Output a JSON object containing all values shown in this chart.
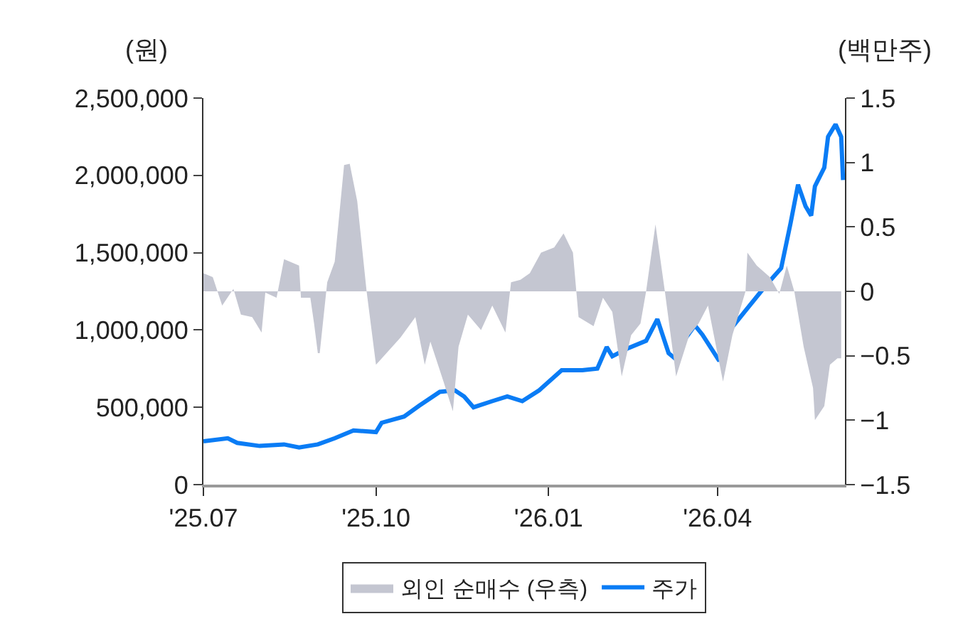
{
  "chart_data": {
    "type": "line",
    "ylabel": "(원)",
    "y2label": "(백만주)",
    "xlim": [
      "2025-07-01",
      "2026-06-08"
    ],
    "xticks": [
      {
        "value": "2025-07-01",
        "label": "'25.07"
      },
      {
        "value": "2025-10-01",
        "label": "'25.10"
      },
      {
        "value": "2026-01-01",
        "label": "'26.01"
      },
      {
        "value": "2026-04-01",
        "label": "'26.04"
      }
    ],
    "ylim": [
      0,
      2500000
    ],
    "yticks": [
      {
        "value": 0,
        "label": "0"
      },
      {
        "value": 500000,
        "label": "500,000"
      },
      {
        "value": 1000000,
        "label": "1,000,000"
      },
      {
        "value": 1500000,
        "label": "1,500,000"
      },
      {
        "value": 2000000,
        "label": "2,000,000"
      },
      {
        "value": 2500000,
        "label": "2,500,000"
      }
    ],
    "y2lim": [
      -1.5,
      1.5
    ],
    "y2ticks": [
      {
        "value": -1.5,
        "label": "−1.5"
      },
      {
        "value": -1,
        "label": "−1"
      },
      {
        "value": -0.5,
        "label": "−0.5"
      },
      0,
      0.5,
      1,
      1.5
    ],
    "grid": false,
    "legend": "bottom",
    "series": [
      {
        "name": "외인 순매수 (우측)",
        "type": "area",
        "axis": "y2",
        "color": "#c4c6d1",
        "x": [
          "2025-07-01",
          "2025-07-06",
          "2025-07-11",
          "2025-07-17",
          "2025-07-21",
          "2025-07-27",
          "2025-08-01",
          "2025-08-03",
          "2025-08-09",
          "2025-08-13",
          "2025-08-21",
          "2025-08-22",
          "2025-08-27",
          "2025-08-29",
          "2025-08-31",
          "2025-09-01",
          "2025-09-05",
          "2025-09-09",
          "2025-09-14",
          "2025-09-17",
          "2025-09-21",
          "2025-09-26",
          "2025-10-01",
          "2025-10-14",
          "2025-10-22",
          "2025-10-27",
          "2025-10-30",
          "2025-11-06",
          "2025-11-11",
          "2025-11-14",
          "2025-11-19",
          "2025-11-26",
          "2025-12-02",
          "2025-12-09",
          "2025-12-12",
          "2025-12-17",
          "2025-12-22",
          "2025-12-28",
          "2026-01-04",
          "2026-01-09",
          "2026-01-14",
          "2026-01-17",
          "2026-01-25",
          "2026-01-30",
          "2026-02-04",
          "2026-02-09",
          "2026-02-14",
          "2026-02-19",
          "2026-02-22",
          "2026-02-27",
          "2026-03-04",
          "2026-03-10",
          "2026-03-17",
          "2026-03-22",
          "2026-03-27",
          "2026-04-04",
          "2026-04-09",
          "2026-04-16",
          "2026-04-17",
          "2026-04-22",
          "2026-04-29",
          "2026-05-04",
          "2026-05-08",
          "2026-05-12",
          "2026-05-17",
          "2026-05-22",
          "2026-05-23",
          "2026-05-28",
          "2026-05-31",
          "2026-06-04",
          "2026-06-06"
        ],
        "values": [
          0.14,
          0.11,
          -0.11,
          0.02,
          -0.18,
          -0.2,
          -0.32,
          -0.01,
          -0.05,
          0.25,
          0.2,
          -0.05,
          -0.05,
          -0.25,
          -0.48,
          -0.48,
          0.07,
          0.23,
          0.98,
          0.99,
          0.7,
          0,
          -0.57,
          -0.36,
          -0.2,
          -0.57,
          -0.39,
          -0.7,
          -0.93,
          -0.43,
          -0.18,
          -0.3,
          -0.11,
          -0.32,
          0.07,
          0.09,
          0.14,
          0.3,
          0.34,
          0.45,
          0.3,
          -0.2,
          -0.27,
          -0.05,
          -0.16,
          -0.66,
          -0.34,
          -0.25,
          0,
          0.52,
          0,
          -0.66,
          -0.34,
          -0.25,
          -0.11,
          -0.7,
          -0.34,
          0,
          0.3,
          0.2,
          0.11,
          -0.02,
          0.2,
          0,
          -0.43,
          -0.75,
          -1,
          -0.89,
          -0.57,
          -0.52,
          -0.52
        ]
      },
      {
        "name": "주가",
        "color": "#0a7cf5",
        "x": [
          "2025-07-01",
          "2025-07-14",
          "2025-07-19",
          "2025-07-31",
          "2025-08-13",
          "2025-08-21",
          "2025-08-31",
          "2025-09-09",
          "2025-09-19",
          "2025-10-01",
          "2025-10-04",
          "2025-10-16",
          "2025-10-24",
          "2025-11-04",
          "2025-11-12",
          "2025-11-17",
          "2025-11-22",
          "2025-12-02",
          "2025-12-10",
          "2025-12-18",
          "2025-12-27",
          "2026-01-08",
          "2026-01-19",
          "2026-01-27",
          "2026-02-01",
          "2026-02-04",
          "2026-02-12",
          "2026-02-22",
          "2026-02-28",
          "2026-03-06",
          "2026-03-10",
          "2026-03-14",
          "2026-03-20",
          "2026-03-24",
          "2026-04-02",
          "2026-04-09",
          "2026-04-17",
          "2026-04-27",
          "2026-05-05",
          "2026-05-10",
          "2026-05-14",
          "2026-05-18",
          "2026-05-21",
          "2026-05-23",
          "2026-05-28",
          "2026-05-30",
          "2026-06-03",
          "2026-06-06",
          "2026-06-07"
        ],
        "values": [
          280000,
          300000,
          270000,
          250000,
          260000,
          240000,
          260000,
          300000,
          350000,
          340000,
          400000,
          440000,
          510000,
          600000,
          610000,
          570000,
          500000,
          540000,
          570000,
          540000,
          610000,
          740000,
          740000,
          750000,
          890000,
          830000,
          880000,
          930000,
          1070000,
          850000,
          810000,
          930000,
          1030000,
          970000,
          800000,
          1020000,
          1140000,
          1290000,
          1400000,
          1690000,
          1940000,
          1800000,
          1740000,
          1930000,
          2050000,
          2250000,
          2330000,
          2250000,
          1970000
        ]
      }
    ]
  }
}
